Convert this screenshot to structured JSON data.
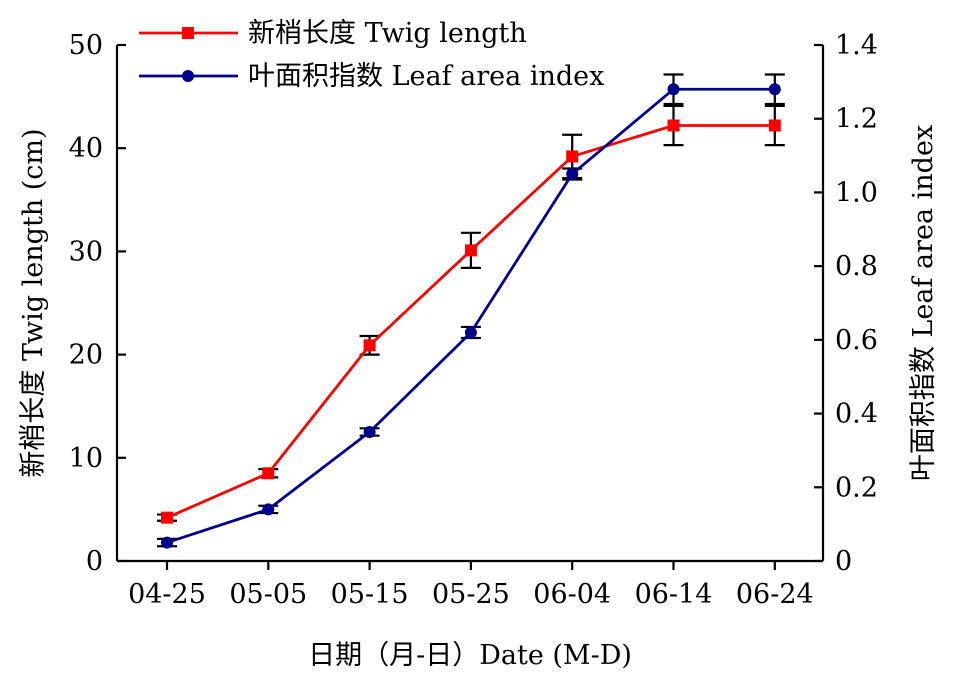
{
  "chart_data": {
    "type": "line",
    "xlabel": "日期（月-日）Date (M-D)",
    "ylabel_left": "新梢长度 Twig length (cm)",
    "ylabel_right": "叶面积指数 Leaf area index",
    "categories": [
      "04-25",
      "05-05",
      "05-15",
      "05-25",
      "06-04",
      "06-14",
      "06-24"
    ],
    "ylim_left": [
      0,
      50
    ],
    "yticks_left": [
      0,
      10,
      20,
      30,
      40,
      50
    ],
    "ytick_labels_left": [
      "0",
      "10",
      "20",
      "30",
      "40",
      "50"
    ],
    "ylim_right": [
      0,
      1.4
    ],
    "yticks_right": [
      0,
      0.2,
      0.4,
      0.6,
      0.8,
      1.0,
      1.2,
      1.4
    ],
    "ytick_labels_right": [
      "0",
      "0.2",
      "0.4",
      "0.6",
      "0.8",
      "1.0",
      "1.2",
      "1.4"
    ],
    "grid": false,
    "legend_position": "top-left",
    "series": [
      {
        "name": "新梢长度 Twig length",
        "axis": "left",
        "color": "#ff0000",
        "marker": "square",
        "values": [
          4.2,
          8.5,
          20.9,
          30.1,
          39.2,
          42.2,
          42.2
        ],
        "errors": [
          0.3,
          0.4,
          0.9,
          1.7,
          2.1,
          1.9,
          1.9
        ]
      },
      {
        "name": "叶面积指数 Leaf area index",
        "axis": "right",
        "color": "#00008b",
        "marker": "circle",
        "values": [
          0.05,
          0.14,
          0.35,
          0.62,
          1.05,
          1.28,
          1.28
        ],
        "errors": [
          0.01,
          0.01,
          0.01,
          0.015,
          0.015,
          0.04,
          0.04
        ]
      }
    ]
  }
}
